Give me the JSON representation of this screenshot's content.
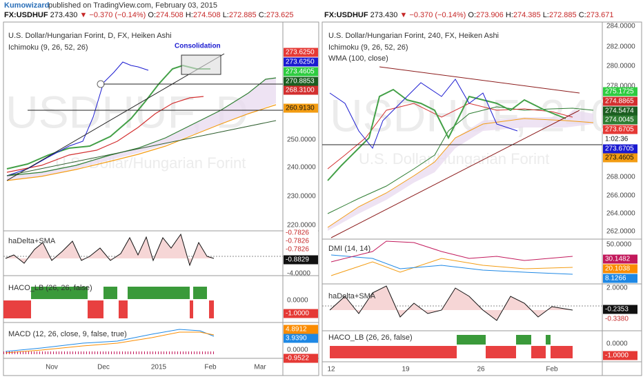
{
  "header": {
    "author": "Kumowizard",
    "published": "published on TradingView.com, February 03, 2015"
  },
  "left": {
    "quote": {
      "symbol": "FX:USDHUF",
      "last": "273.430",
      "change": "▼ −0.370 (−0.14%)",
      "ohlc": [
        {
          "label": "O:",
          "value": "274.508"
        },
        {
          "label": "H:",
          "value": "274.508"
        },
        {
          "label": "L:",
          "value": "272.885"
        },
        {
          "label": "C:",
          "value": "273.625"
        }
      ]
    },
    "watermark": "USDHUF, D",
    "watermark_sub": "U.S. Dollar/Hungarian Forint",
    "title": "U.S. Dollar/Hungarian Forint, D, FX, Heiken Ashi",
    "indicator": "Ichimoku (9, 26, 52, 26)",
    "annotation": "Consolidation",
    "price_axis": [
      "250.0000",
      "240.0000",
      "230.0000",
      "220.0000"
    ],
    "price_tags": [
      "273.6250",
      "273.6250",
      "273.4605",
      "270.8853",
      "268.3100",
      "260.9130"
    ],
    "hadelta": {
      "title": "haDelta+SMA",
      "tags": [
        "-0.7826",
        "-0.7826",
        "-0.7826",
        "-0.8829"
      ],
      "axis": [
        "-4.0000"
      ]
    },
    "haco": {
      "title": "HACO_LB (26, 26, false)",
      "axis": [
        "0.0000"
      ],
      "tags": [
        "-1.0000"
      ]
    },
    "macd": {
      "title": "MACD (12, 26, close, 9, false, true)",
      "tags": [
        "4.8912",
        "3.9390",
        "-0.9522"
      ],
      "axis": [
        "0.0000"
      ]
    },
    "time_axis": [
      "Nov",
      "Dec",
      "2015",
      "Feb",
      "Mar"
    ]
  },
  "right": {
    "quote": {
      "symbol": "FX:USDHUF",
      "last": "273.430",
      "change": "▼ −0.370 (−0.14%)",
      "ohlc": [
        {
          "label": "O:",
          "value": "273.906"
        },
        {
          "label": "H:",
          "value": "274.385"
        },
        {
          "label": "L:",
          "value": "272.885"
        },
        {
          "label": "C:",
          "value": "273.671"
        }
      ]
    },
    "watermark": "USDHUF, 240",
    "watermark_sub": "U.S. Dollar/Hungarian Forint",
    "title": "U.S. Dollar/Hungarian Forint, 240, FX, Heiken Ashi",
    "indicators": [
      "Ichimoku (9, 26, 52, 26)",
      "WMA (100, close)"
    ],
    "price_axis": [
      "284.0000",
      "282.0000",
      "280.0000",
      "278.0000",
      "268.0000",
      "266.0000",
      "264.0000",
      "262.0000"
    ],
    "price_tags": [
      "275.1725",
      "274.8865",
      "274.5474",
      "274.0045",
      "273.6705",
      "1:02:36",
      "273.6705",
      "273.4605"
    ],
    "dmi": {
      "title": "DMI (14, 14)",
      "axis": [
        "50.0000"
      ],
      "tags": [
        "30.1482",
        "20.1038",
        "8.1266"
      ]
    },
    "hadelta": {
      "title": "haDelta+SMA",
      "axis": [
        "2.0000"
      ],
      "tags": [
        "-0.2353",
        "-0.3380"
      ]
    },
    "haco": {
      "title": "HACO_LB (26, 26, false)",
      "axis": [
        "0.0000"
      ],
      "tags": [
        "-1.0000"
      ]
    },
    "time_axis": [
      "12",
      "19",
      "26",
      "Feb"
    ]
  }
}
